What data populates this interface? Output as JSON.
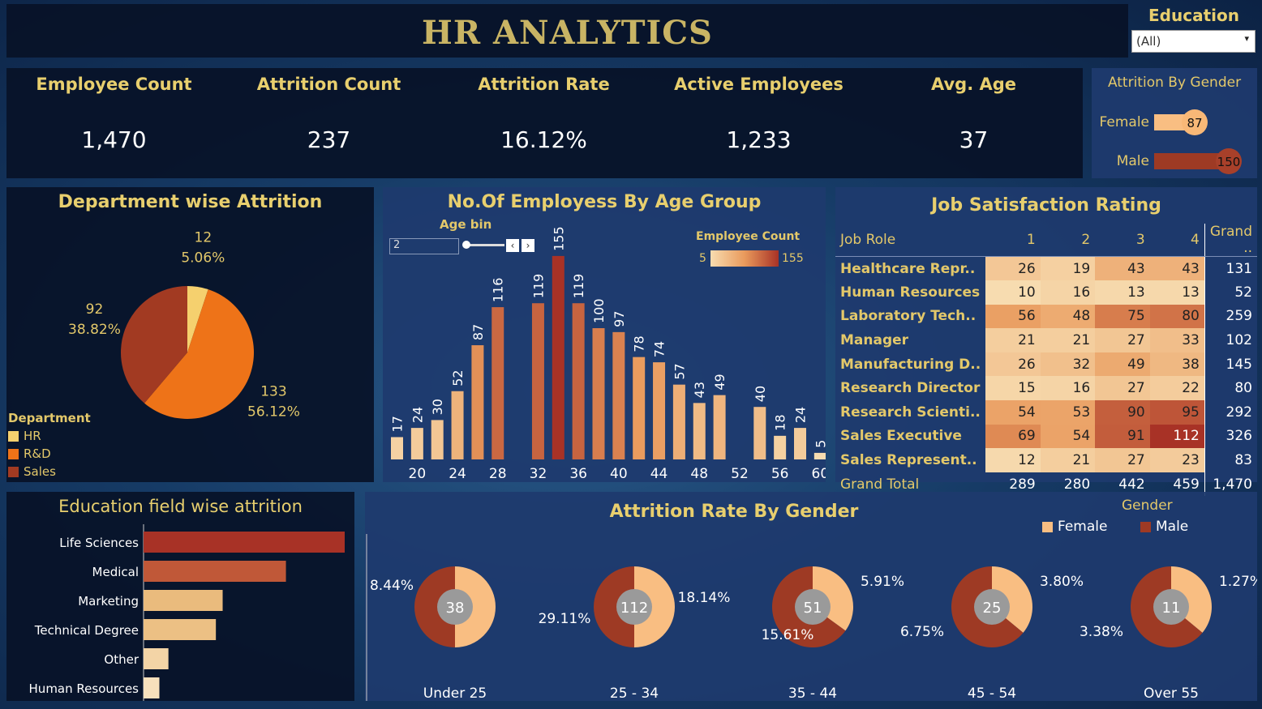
{
  "header": {
    "title": "HR ANALYTICS",
    "filter_label": "Education",
    "filter_value": "(All)"
  },
  "kpis": [
    {
      "label": "Employee Count",
      "value": "1,470"
    },
    {
      "label": "Attrition Count",
      "value": "237"
    },
    {
      "label": "Attrition Rate",
      "value": "16.12%"
    },
    {
      "label": "Active Employees",
      "value": "1,233"
    },
    {
      "label": "Avg. Age",
      "value": "37"
    }
  ],
  "colors": {
    "hr": "#f5d06e",
    "rd": "#ee7318",
    "sales": "#a23a22",
    "female": "#f9be82",
    "male": "#9e3a24",
    "gold": "#e8cf6e"
  },
  "chart_data": [
    {
      "type": "bar",
      "title": "Attrition By Gender",
      "categories": [
        "Female",
        "Male"
      ],
      "values": [
        87,
        150
      ]
    },
    {
      "type": "pie",
      "title": "Department wise Attrition",
      "legend_title": "Department",
      "categories": [
        "HR",
        "R&D",
        "Sales"
      ],
      "values": [
        12,
        133,
        92
      ],
      "percent_labels": [
        "5.06%",
        "56.12%",
        "38.82%"
      ]
    },
    {
      "type": "bar",
      "title": "No.Of Employess By Age Group",
      "control_label": "Age bin",
      "control_value": "2",
      "legend_title": "Employee Count",
      "legend_min": "5",
      "legend_max": "155",
      "x": [
        18,
        20,
        22,
        24,
        26,
        28,
        30,
        32,
        34,
        36,
        38,
        40,
        42,
        44,
        46,
        48,
        50,
        52,
        54,
        56,
        58,
        60
      ],
      "values": [
        17,
        24,
        30,
        52,
        87,
        116,
        null,
        119,
        155,
        119,
        100,
        97,
        78,
        74,
        57,
        43,
        49,
        null,
        40,
        18,
        24,
        5
      ],
      "value_labels": [
        "17",
        "24",
        "30",
        "52",
        "87",
        "116",
        "",
        "119",
        "155",
        "119",
        "100",
        "97",
        "78",
        "74",
        "57",
        "43",
        "49",
        "",
        "40",
        "18",
        "24",
        "5"
      ],
      "xticks": [
        "20",
        "24",
        "28",
        "32",
        "36",
        "40",
        "44",
        "48",
        "52",
        "56",
        "60"
      ]
    },
    {
      "type": "table",
      "title": "Job Satisfaction Rating",
      "columns": [
        "Job Role",
        "1",
        "2",
        "3",
        "4",
        "Grand .."
      ],
      "rows": [
        {
          "role": "Healthcare Repr..",
          "v": [
            26,
            19,
            43,
            43
          ],
          "total": "131"
        },
        {
          "role": "Human Resources",
          "v": [
            10,
            16,
            13,
            13
          ],
          "total": "52"
        },
        {
          "role": "Laboratory Tech..",
          "v": [
            56,
            48,
            75,
            80
          ],
          "total": "259"
        },
        {
          "role": "Manager",
          "v": [
            21,
            21,
            27,
            33
          ],
          "total": "102"
        },
        {
          "role": "Manufacturing D..",
          "v": [
            26,
            32,
            49,
            38
          ],
          "total": "145"
        },
        {
          "role": "Research Director",
          "v": [
            15,
            16,
            27,
            22
          ],
          "total": "80"
        },
        {
          "role": "Research Scienti..",
          "v": [
            54,
            53,
            90,
            95
          ],
          "total": "292"
        },
        {
          "role": "Sales Executive",
          "v": [
            69,
            54,
            91,
            112
          ],
          "total": "326"
        },
        {
          "role": "Sales Represent..",
          "v": [
            12,
            21,
            27,
            23
          ],
          "total": "83"
        }
      ],
      "grand_total": {
        "label": "Grand Total",
        "v": [
          "289",
          "280",
          "442",
          "459"
        ],
        "total": "1,470"
      }
    },
    {
      "type": "bar",
      "title": "Education field wise attrition",
      "categories": [
        "Life Sciences",
        "Medical",
        "Marketing",
        "Technical Degree",
        "Other",
        "Human Resources"
      ],
      "values": [
        89,
        63,
        35,
        32,
        11,
        7
      ]
    },
    {
      "type": "pie",
      "title": "Attrition Rate By Gender",
      "legend_title": "Gender",
      "series_names": [
        "Female",
        "Male"
      ],
      "groups": [
        {
          "label": "Under 25",
          "total": "38",
          "female_pct": "8.44%",
          "male_pct": null,
          "female_share": 0.5
        },
        {
          "label": "25 - 34",
          "total": "112",
          "female_pct": "18.14%",
          "male_pct": "29.11%",
          "female_share": 0.5
        },
        {
          "label": "35 - 44",
          "total": "51",
          "female_pct": "5.91%",
          "male_pct": "15.61%",
          "female_share": 0.35
        },
        {
          "label": "45 - 54",
          "total": "25",
          "female_pct": "3.80%",
          "male_pct": "6.75%",
          "female_share": 0.36
        },
        {
          "label": "Over 55",
          "total": "11",
          "female_pct": "1.27%",
          "male_pct": "3.38%",
          "female_share": 0.36
        }
      ]
    }
  ]
}
